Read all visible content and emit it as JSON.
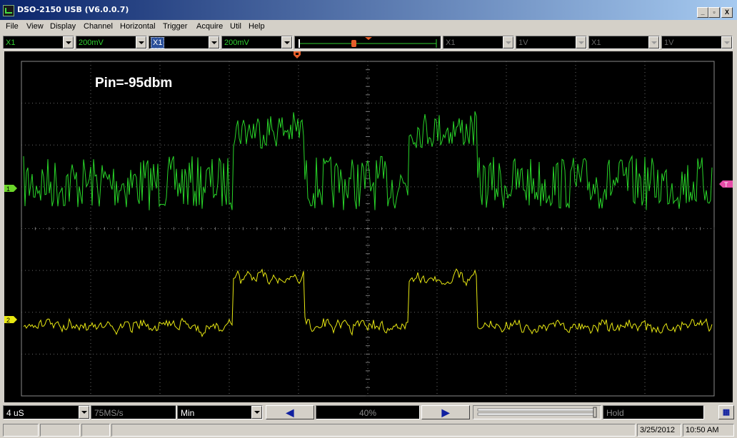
{
  "window": {
    "title": "DSO-2150 USB (V6.0.0.7)",
    "min": "_",
    "max": "▫",
    "close": "X"
  },
  "menu": [
    "File",
    "View",
    "Display",
    "Channel",
    "Horizontal",
    "Trigger",
    "Acquire",
    "Util",
    "Help"
  ],
  "controls": {
    "ch1_probe": "X1",
    "ch1_volts": "200mV",
    "ch2_probe": "X1",
    "ch2_volts": "200mV",
    "ch3_probe": "X1",
    "ch3_volts": "1V",
    "ch4_probe": "X1",
    "ch4_volts": "1V"
  },
  "scope": {
    "annotation": "Pin=-95dbm",
    "ch1_marker": "1",
    "ch2_marker": "2",
    "trigger_marker": "T",
    "colors": {
      "ch1": "#29d629",
      "ch2": "#e8e812",
      "grid": "#6a6a6a",
      "trig": "#e64da8"
    }
  },
  "bottom": {
    "timebase": "4 uS",
    "sample_rate": "75MS/s",
    "acq_mode": "Min",
    "nav_left": "◀",
    "position": "40%",
    "nav_right": "▶",
    "run_status": "Hold"
  },
  "status": {
    "date": "3/25/2012",
    "time": "10:50 AM"
  }
}
